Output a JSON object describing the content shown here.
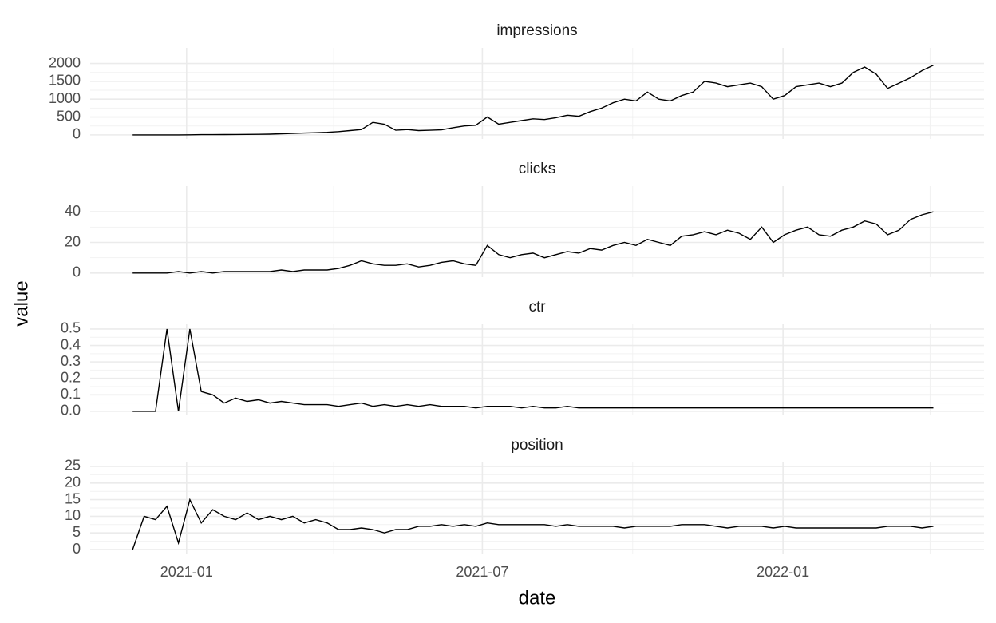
{
  "chart_data": {
    "type": "line",
    "x_label": "date",
    "y_label": "value",
    "color": "#000000",
    "grid": true,
    "xlim": [
      "2020-11-03",
      "2022-05-04"
    ],
    "xticks": [
      {
        "value": "2021-01-01",
        "label": "2021-01"
      },
      {
        "value": "2021-07-01",
        "label": "2021-07"
      },
      {
        "value": "2022-01-01",
        "label": "2022-01"
      }
    ],
    "x_minor_grid": [
      "2021-04-01",
      "2021-10-01",
      "2022-04-01"
    ],
    "x": [
      "2020-11-29",
      "2020-12-06",
      "2020-12-13",
      "2020-12-20",
      "2020-12-27",
      "2021-01-03",
      "2021-01-10",
      "2021-01-17",
      "2021-01-24",
      "2021-01-31",
      "2021-02-07",
      "2021-02-14",
      "2021-02-21",
      "2021-02-28",
      "2021-03-07",
      "2021-03-14",
      "2021-03-21",
      "2021-03-28",
      "2021-04-04",
      "2021-04-11",
      "2021-04-18",
      "2021-04-25",
      "2021-05-02",
      "2021-05-09",
      "2021-05-16",
      "2021-05-23",
      "2021-05-30",
      "2021-06-06",
      "2021-06-13",
      "2021-06-20",
      "2021-06-27",
      "2021-07-04",
      "2021-07-11",
      "2021-07-18",
      "2021-07-25",
      "2021-08-01",
      "2021-08-08",
      "2021-08-15",
      "2021-08-22",
      "2021-08-29",
      "2021-09-05",
      "2021-09-12",
      "2021-09-19",
      "2021-09-26",
      "2021-10-03",
      "2021-10-10",
      "2021-10-17",
      "2021-10-24",
      "2021-10-31",
      "2021-11-07",
      "2021-11-14",
      "2021-11-21",
      "2021-11-28",
      "2021-12-05",
      "2021-12-12",
      "2021-12-19",
      "2021-12-26",
      "2022-01-02",
      "2022-01-09",
      "2022-01-16",
      "2022-01-23",
      "2022-01-30",
      "2022-02-06",
      "2022-02-13",
      "2022-02-20",
      "2022-02-27",
      "2022-03-06",
      "2022-03-13",
      "2022-03-20",
      "2022-03-27",
      "2022-04-03"
    ],
    "facets": [
      {
        "title": "impressions",
        "ylim": [
          -115,
          2437
        ],
        "yticks": [
          0,
          500,
          1000,
          1500,
          2000
        ],
        "values": [
          0,
          0,
          0,
          0,
          0,
          2,
          5,
          5,
          8,
          10,
          12,
          15,
          20,
          30,
          40,
          50,
          60,
          70,
          90,
          120,
          150,
          350,
          300,
          130,
          150,
          120,
          130,
          140,
          200,
          250,
          270,
          500,
          300,
          350,
          400,
          450,
          430,
          480,
          550,
          520,
          650,
          750,
          900,
          1000,
          950,
          1200,
          1000,
          950,
          1100,
          1200,
          1500,
          1450,
          1350,
          1400,
          1450,
          1350,
          1000,
          1100,
          1350,
          1400,
          1450,
          1350,
          1450,
          1750,
          1900,
          1700,
          1300,
          1450,
          1600,
          1800,
          1950
        ]
      },
      {
        "title": "clicks",
        "ylim": [
          -2.7,
          56.8
        ],
        "yticks": [
          0,
          20,
          40
        ],
        "values": [
          0,
          0,
          0,
          0,
          1,
          0,
          1,
          0,
          1,
          1,
          1,
          1,
          1,
          2,
          1,
          2,
          2,
          2,
          3,
          5,
          8,
          6,
          5,
          5,
          6,
          4,
          5,
          7,
          8,
          6,
          5,
          18,
          12,
          10,
          12,
          13,
          10,
          12,
          14,
          13,
          16,
          15,
          18,
          20,
          18,
          22,
          20,
          18,
          24,
          25,
          27,
          25,
          28,
          26,
          22,
          30,
          20,
          25,
          28,
          30,
          25,
          24,
          28,
          30,
          34,
          32,
          25,
          28,
          35,
          38,
          40
        ]
      },
      {
        "title": "ctr",
        "ylim": [
          -0.025,
          0.529
        ],
        "yticks": [
          {
            "value": 0,
            "label": "0.0"
          },
          0.1,
          0.2,
          0.3,
          0.4,
          0.5
        ],
        "values": [
          0,
          0,
          0,
          0.5,
          0,
          0.5,
          0.12,
          0.1,
          0.05,
          0.08,
          0.06,
          0.07,
          0.05,
          0.06,
          0.05,
          0.04,
          0.04,
          0.04,
          0.03,
          0.04,
          0.05,
          0.03,
          0.04,
          0.03,
          0.04,
          0.03,
          0.04,
          0.03,
          0.03,
          0.03,
          0.02,
          0.03,
          0.03,
          0.03,
          0.02,
          0.03,
          0.02,
          0.02,
          0.03,
          0.02,
          0.02,
          0.02,
          0.02,
          0.02,
          0.02,
          0.02,
          0.02,
          0.02,
          0.02,
          0.02,
          0.02,
          0.02,
          0.02,
          0.02,
          0.02,
          0.02,
          0.02,
          0.02,
          0.02,
          0.02,
          0.02,
          0.02,
          0.02,
          0.02,
          0.02,
          0.02,
          0.02,
          0.02,
          0.02,
          0.02,
          0.02
        ]
      },
      {
        "title": "position",
        "ylim": [
          -1.2,
          26.2
        ],
        "yticks": [
          0,
          5,
          10,
          15,
          20,
          25
        ],
        "values": [
          0,
          10,
          9,
          13,
          2,
          15,
          8,
          12,
          10,
          9,
          11,
          9,
          10,
          9,
          10,
          8,
          9,
          8,
          6,
          6,
          6.5,
          6,
          5,
          6,
          6,
          7,
          7,
          7.5,
          7,
          7.5,
          7,
          8,
          7.5,
          7.5,
          7.5,
          7.5,
          7.5,
          7,
          7.5,
          7,
          7,
          7,
          7,
          6.5,
          7,
          7,
          7,
          7,
          7.5,
          7.5,
          7.5,
          7,
          6.5,
          7,
          7,
          7,
          6.5,
          7,
          6.5,
          6.5,
          6.5,
          6.5,
          6.5,
          6.5,
          6.5,
          6.5,
          7,
          7,
          7,
          6.5,
          7
        ]
      }
    ]
  }
}
